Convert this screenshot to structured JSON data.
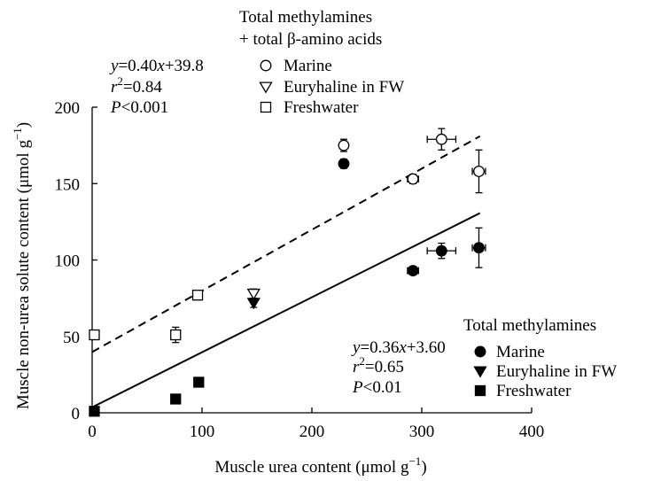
{
  "chart_data": {
    "type": "scatter",
    "xlabel": "Muscle urea content (μmol g",
    "xlabel_sup": "−1",
    "xlabel_end": ")",
    "ylabel": "Muscle non-urea solute content (μmol g",
    "ylabel_sup": "−1",
    "ylabel_end": ")",
    "xlim": [
      0,
      400
    ],
    "ylim": [
      0,
      200
    ],
    "xticks": [
      0,
      100,
      200,
      300,
      400
    ],
    "yticks": [
      0,
      50,
      100,
      150,
      200
    ],
    "grid": false,
    "legends": [
      {
        "title_lines": [
          "Total methylamines",
          "+ total β-amino acids"
        ],
        "placement": "top",
        "entries": [
          {
            "marker": "circle-open",
            "label": "Marine"
          },
          {
            "marker": "triangle-open",
            "label": "Euryhaline in FW"
          },
          {
            "marker": "square-open",
            "label": "Freshwater"
          }
        ]
      },
      {
        "title_lines": [
          "Total methylamines"
        ],
        "placement": "bottom-right",
        "entries": [
          {
            "marker": "circle-filled",
            "label": "Marine"
          },
          {
            "marker": "triangle-filled",
            "label": "Euryhaline in FW"
          },
          {
            "marker": "square-filled",
            "label": "Freshwater"
          }
        ]
      }
    ],
    "annotations": [
      {
        "id": "open",
        "placement": "top-left",
        "equation": "=0.40",
        "equation_end": "+39.8",
        "r2": "=0.84",
        "p": "<0.001"
      },
      {
        "id": "filled",
        "placement": "bottom-right",
        "equation": "=0.36",
        "equation_end": "+3.60",
        "r2": "=0.65",
        "p": "<0.01"
      }
    ],
    "fit_lines": [
      {
        "series": "Total methylamines + total β-amino acids",
        "style": "dashed",
        "slope": 0.4,
        "intercept": 39.8,
        "x_range": [
          0,
          353
        ]
      },
      {
        "series": "Total methylamines",
        "style": "solid",
        "slope": 0.36,
        "intercept": 3.6,
        "x_range": [
          0,
          353
        ]
      }
    ],
    "series": [
      {
        "name": "Total methylamines + total β-amino acids",
        "points": [
          {
            "group": "Marine",
            "marker": "circle-open",
            "x": 229,
            "y": 175,
            "xerr": 0,
            "yerr": 4
          },
          {
            "group": "Marine",
            "marker": "circle-open",
            "x": 318,
            "y": 179,
            "xerr": 13,
            "yerr": 7
          },
          {
            "group": "Marine",
            "marker": "circle-open",
            "x": 292,
            "y": 153,
            "xerr": 5,
            "yerr": 3
          },
          {
            "group": "Marine",
            "marker": "circle-open",
            "x": 352,
            "y": 158,
            "xerr": 6,
            "yerr": 14
          },
          {
            "group": "Euryhaline in FW",
            "marker": "triangle-open",
            "x": 147,
            "y": 78,
            "xerr": 0,
            "yerr": 3
          },
          {
            "group": "Freshwater",
            "marker": "square-open",
            "x": 96,
            "y": 77,
            "xerr": 4,
            "yerr": 2
          },
          {
            "group": "Freshwater",
            "marker": "square-open",
            "x": 76,
            "y": 51,
            "xerr": 0,
            "yerr": 5
          },
          {
            "group": "Freshwater",
            "marker": "square-open",
            "x": 2,
            "y": 51,
            "xerr": 0,
            "yerr": 0
          }
        ]
      },
      {
        "name": "Total methylamines",
        "points": [
          {
            "group": "Marine",
            "marker": "circle-filled",
            "x": 229,
            "y": 163,
            "xerr": 0,
            "yerr": 3
          },
          {
            "group": "Marine",
            "marker": "circle-filled",
            "x": 318,
            "y": 106,
            "xerr": 13,
            "yerr": 5
          },
          {
            "group": "Marine",
            "marker": "circle-filled",
            "x": 292,
            "y": 93,
            "xerr": 5,
            "yerr": 2
          },
          {
            "group": "Marine",
            "marker": "circle-filled",
            "x": 352,
            "y": 108,
            "xerr": 6,
            "yerr": 13
          },
          {
            "group": "Euryhaline in FW",
            "marker": "triangle-filled",
            "x": 147,
            "y": 72,
            "xerr": 0,
            "yerr": 3
          },
          {
            "group": "Freshwater",
            "marker": "square-filled",
            "x": 97,
            "y": 20,
            "xerr": 4,
            "yerr": 3
          },
          {
            "group": "Freshwater",
            "marker": "square-filled",
            "x": 76,
            "y": 9,
            "xerr": 0,
            "yerr": 0
          },
          {
            "group": "Freshwater",
            "marker": "square-filled",
            "x": 2,
            "y": 1,
            "xerr": 0,
            "yerr": 0
          }
        ]
      }
    ]
  }
}
